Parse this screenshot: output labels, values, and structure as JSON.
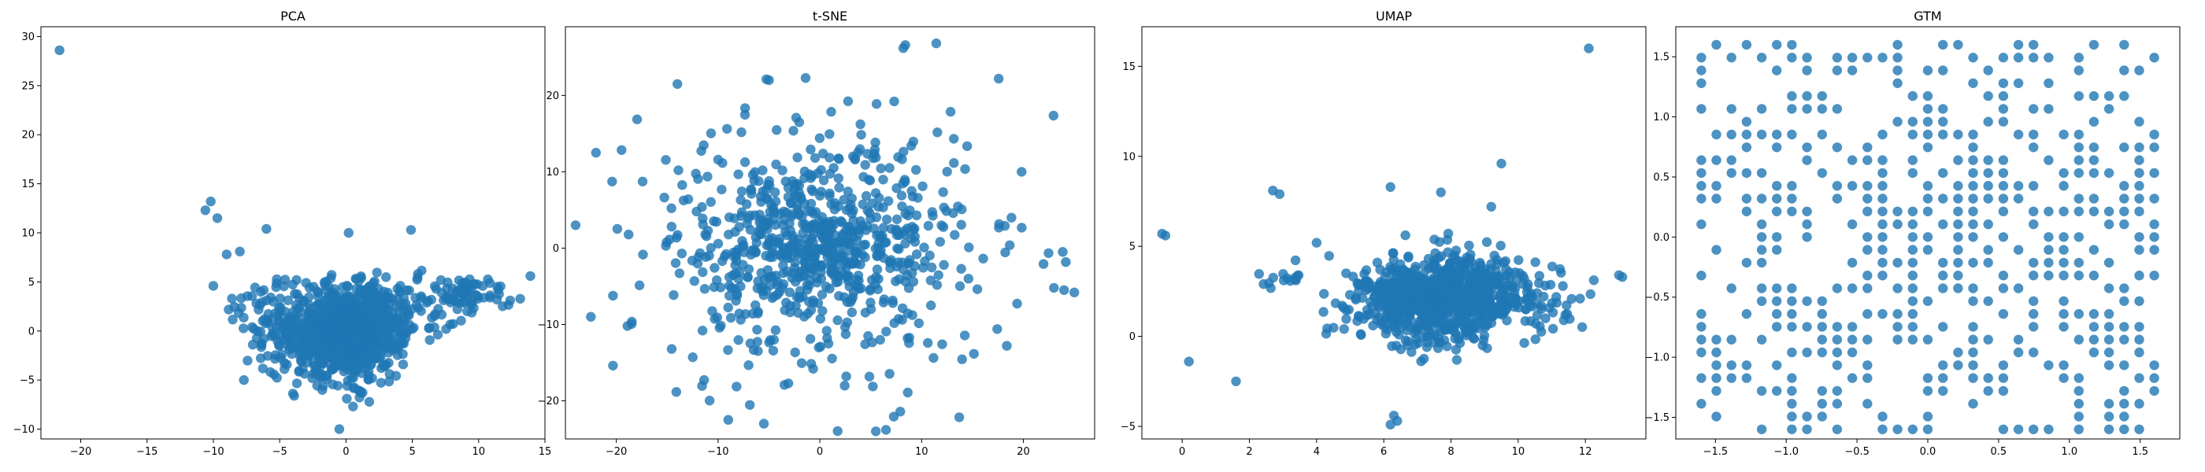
{
  "figure": {
    "point_color": "#1f77b4",
    "point_opacity": 0.8
  },
  "chart_data": [
    {
      "type": "scatter",
      "title": "PCA",
      "xlim": [
        -23,
        15
      ],
      "ylim": [
        -11,
        31
      ],
      "xticks": [
        -20,
        -15,
        -10,
        -5,
        0,
        5,
        10,
        15
      ],
      "yticks": [
        -10,
        -5,
        0,
        5,
        10,
        15,
        20,
        25,
        30
      ],
      "outliers": [
        [
          -21.6,
          28.6
        ],
        [
          -10.2,
          13.2
        ],
        [
          -10.6,
          12.3
        ],
        [
          -9.7,
          11.5
        ],
        [
          -10.0,
          4.6
        ],
        [
          13.9,
          5.6
        ],
        [
          11.4,
          4.5
        ],
        [
          -8.0,
          8.1
        ],
        [
          -9.0,
          7.8
        ],
        [
          -8.6,
          3.3
        ],
        [
          -7.7,
          -5.0
        ],
        [
          -6.0,
          10.4
        ],
        [
          4.9,
          10.3
        ],
        [
          0.2,
          10.0
        ],
        [
          -0.5,
          -10.0
        ]
      ],
      "clusters": [
        {
          "cx": 0.0,
          "cy": -0.3,
          "sx": 2.0,
          "sy": 2.2,
          "n": 900
        },
        {
          "cx": 2.5,
          "cy": 2.0,
          "sx": 3.0,
          "sy": 1.6,
          "n": 160
        },
        {
          "cx": 9.0,
          "cy": 3.7,
          "sx": 1.6,
          "sy": 0.9,
          "n": 70
        },
        {
          "cx": -5.5,
          "cy": 1.0,
          "sx": 1.6,
          "sy": 2.5,
          "n": 90
        }
      ]
    },
    {
      "type": "scatter",
      "title": "t-SNE",
      "xlim": [
        -25,
        27
      ],
      "ylim": [
        -25,
        29
      ],
      "xticks": [
        -20,
        -10,
        0,
        10,
        20
      ],
      "yticks": [
        -20,
        -10,
        0,
        10,
        20
      ],
      "outliers": [
        [
          8.4,
          26.6
        ],
        [
          8.2,
          26.2
        ],
        [
          -24.0,
          3.0
        ],
        [
          -5.0,
          22.0
        ],
        [
          -14.0,
          21.5
        ],
        [
          23.0,
          -5.2
        ],
        [
          24.0,
          -5.5
        ],
        [
          25.0,
          -5.8
        ],
        [
          -22.0,
          12.5
        ],
        [
          -22.5,
          -9.0
        ],
        [
          -5.5,
          -23.0
        ],
        [
          5.5,
          -24.0
        ],
        [
          6.5,
          -23.8
        ],
        [
          -9.0,
          -22.5
        ]
      ],
      "clusters": [
        {
          "cx": 0.0,
          "cy": 0.0,
          "sx": 5.0,
          "sy": 4.5,
          "n": 380
        },
        {
          "cx": 0.0,
          "cy": 0.0,
          "sx": 9.5,
          "sy": 9.0,
          "n": 420
        }
      ]
    },
    {
      "type": "scatter",
      "title": "UMAP",
      "xlim": [
        -1.2,
        13.8
      ],
      "ylim": [
        -5.7,
        17.2
      ],
      "xticks": [
        0,
        2,
        4,
        6,
        8,
        10,
        12
      ],
      "yticks": [
        -5,
        0,
        5,
        10,
        15
      ],
      "outliers": [
        [
          12.1,
          16.0
        ],
        [
          -0.6,
          5.7
        ],
        [
          -0.5,
          5.6
        ],
        [
          0.2,
          -1.4
        ],
        [
          1.6,
          -2.5
        ],
        [
          2.7,
          8.1
        ],
        [
          2.9,
          7.9
        ],
        [
          6.2,
          8.3
        ],
        [
          7.7,
          8.0
        ],
        [
          9.2,
          7.2
        ],
        [
          9.5,
          9.6
        ],
        [
          13.0,
          3.4
        ],
        [
          13.1,
          3.3
        ],
        [
          6.3,
          -4.4
        ],
        [
          6.2,
          -4.9
        ],
        [
          6.4,
          -4.7
        ],
        [
          4.0,
          5.2
        ]
      ],
      "clusters": [
        {
          "cx": 7.6,
          "cy": 2.1,
          "sx": 1.3,
          "sy": 1.2,
          "n": 900
        },
        {
          "cx": 3.0,
          "cy": 3.2,
          "sx": 0.5,
          "sy": 0.2,
          "n": 14
        },
        {
          "cx": 10.8,
          "cy": 1.8,
          "sx": 0.8,
          "sy": 0.8,
          "n": 40
        }
      ]
    },
    {
      "type": "scatter",
      "title": "GTM",
      "xlim": [
        -1.78,
        1.78
      ],
      "ylim": [
        -1.68,
        1.75
      ],
      "xticks": [
        -1.5,
        -1.0,
        -0.5,
        0.0,
        0.5,
        1.0,
        1.5
      ],
      "yticks": [
        -1.5,
        -1.0,
        -0.5,
        0.0,
        0.5,
        1.0,
        1.5
      ],
      "grid": {
        "xmin": -1.6,
        "xmax": 1.6,
        "ymin": -1.6,
        "ymax": 1.6,
        "nx": 31,
        "ny": 31
      },
      "fill": [
        0.35,
        0.7,
        0.35
      ]
    }
  ]
}
